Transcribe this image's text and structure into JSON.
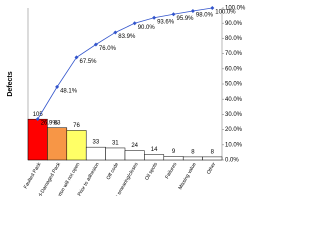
{
  "chart_data": {
    "type": "pareto",
    "y_label": "Defects",
    "categories": [
      "Faulted Pack",
      "Bed-Damaged Pack",
      "Carton will not open",
      "Prior to adhesion",
      "Off code",
      "Ink smearing/closes",
      "Oil spots",
      "Failures",
      "Missing value",
      "Other"
    ],
    "values": [
      105,
      83,
      76,
      33,
      31,
      24,
      14,
      9,
      8,
      8
    ],
    "colors": [
      "#ff0000",
      "#f79646",
      "#ffff66",
      "#ffffff",
      "#ffffff",
      "#ffffff",
      "#ffffff",
      "#ffffff",
      "#ffffff",
      "#ffffff"
    ],
    "ylim": [
      0,
      391
    ],
    "y2lim": [
      0,
      100
    ],
    "y2ticks": [
      {
        "value": 0,
        "label": "0.0%"
      },
      {
        "value": 10,
        "label": "10.0%"
      },
      {
        "value": 20,
        "label": "20.0%"
      },
      {
        "value": 30,
        "label": "30.0%"
      },
      {
        "value": 40,
        "label": "40.0%"
      },
      {
        "value": 50,
        "label": "50.0%"
      },
      {
        "value": 60,
        "label": "60.0%"
      },
      {
        "value": 70,
        "label": "70.0%"
      },
      {
        "value": 80,
        "label": "80.0%"
      },
      {
        "value": 90,
        "label": "90.0%"
      },
      {
        "value": 100,
        "label": "100.0%"
      }
    ],
    "cumulative": {
      "color": "#3355cc",
      "values": [
        26.9,
        48.1,
        67.5,
        76.0,
        83.9,
        90.0,
        93.6,
        95.9,
        98.0,
        100.0
      ],
      "value_labels": [
        "26.9%",
        "48.1%",
        "67.5%",
        "76.0%",
        "83.9%",
        "90.0%",
        "93.6%",
        "95.9%",
        "98.0%",
        "100.0%"
      ]
    }
  }
}
